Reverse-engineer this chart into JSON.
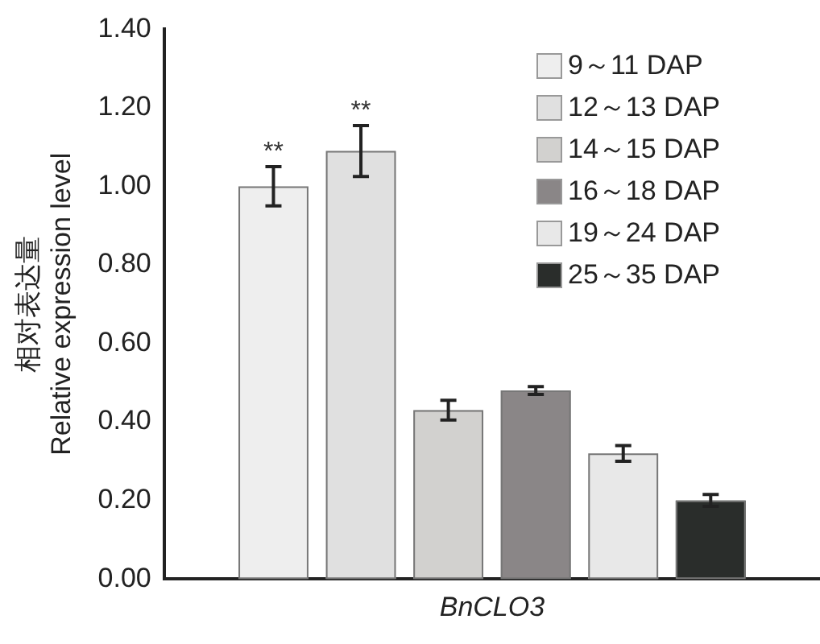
{
  "chart_data": {
    "type": "bar",
    "ylabel": "相对表达量\nRelative expression level",
    "categories": [
      "BnCLO3"
    ],
    "series": [
      {
        "name": "9～11 DAP",
        "color": "#eeeeee",
        "values": [
          1.0
        ],
        "errors": [
          0.05
        ]
      },
      {
        "name": "12～13 DAP",
        "color": "#e0e0e0",
        "values": [
          1.09
        ],
        "errors": [
          0.065
        ]
      },
      {
        "name": "14～15 DAP",
        "color": "#d2d1cf",
        "values": [
          0.43
        ],
        "errors": [
          0.025
        ]
      },
      {
        "name": "16～18 DAP",
        "color": "#8a8687",
        "values": [
          0.48
        ],
        "errors": [
          0.01
        ]
      },
      {
        "name": "19～24 DAP",
        "color": "#e8e8e8",
        "values": [
          0.32
        ],
        "errors": [
          0.02
        ]
      },
      {
        "name": "25～35 DAP",
        "color": "#2a2d2b",
        "values": [
          0.2
        ],
        "errors": [
          0.015
        ]
      }
    ],
    "annotations": [
      "**",
      "**"
    ],
    "ylim": [
      0,
      1.4
    ],
    "yticks": [
      {
        "value": 0,
        "label": "0.00"
      },
      {
        "value": 0.2,
        "label": "0.20"
      },
      {
        "value": 0.4,
        "label": "0.40"
      },
      {
        "value": 0.6,
        "label": "0.60"
      },
      {
        "value": 0.8,
        "label": "0.80"
      },
      {
        "value": 1.0,
        "label": "1.00"
      },
      {
        "value": 1.2,
        "label": "1.20"
      },
      {
        "value": 1.4,
        "label": "1.40"
      }
    ],
    "grid": false,
    "legend": "top right"
  }
}
